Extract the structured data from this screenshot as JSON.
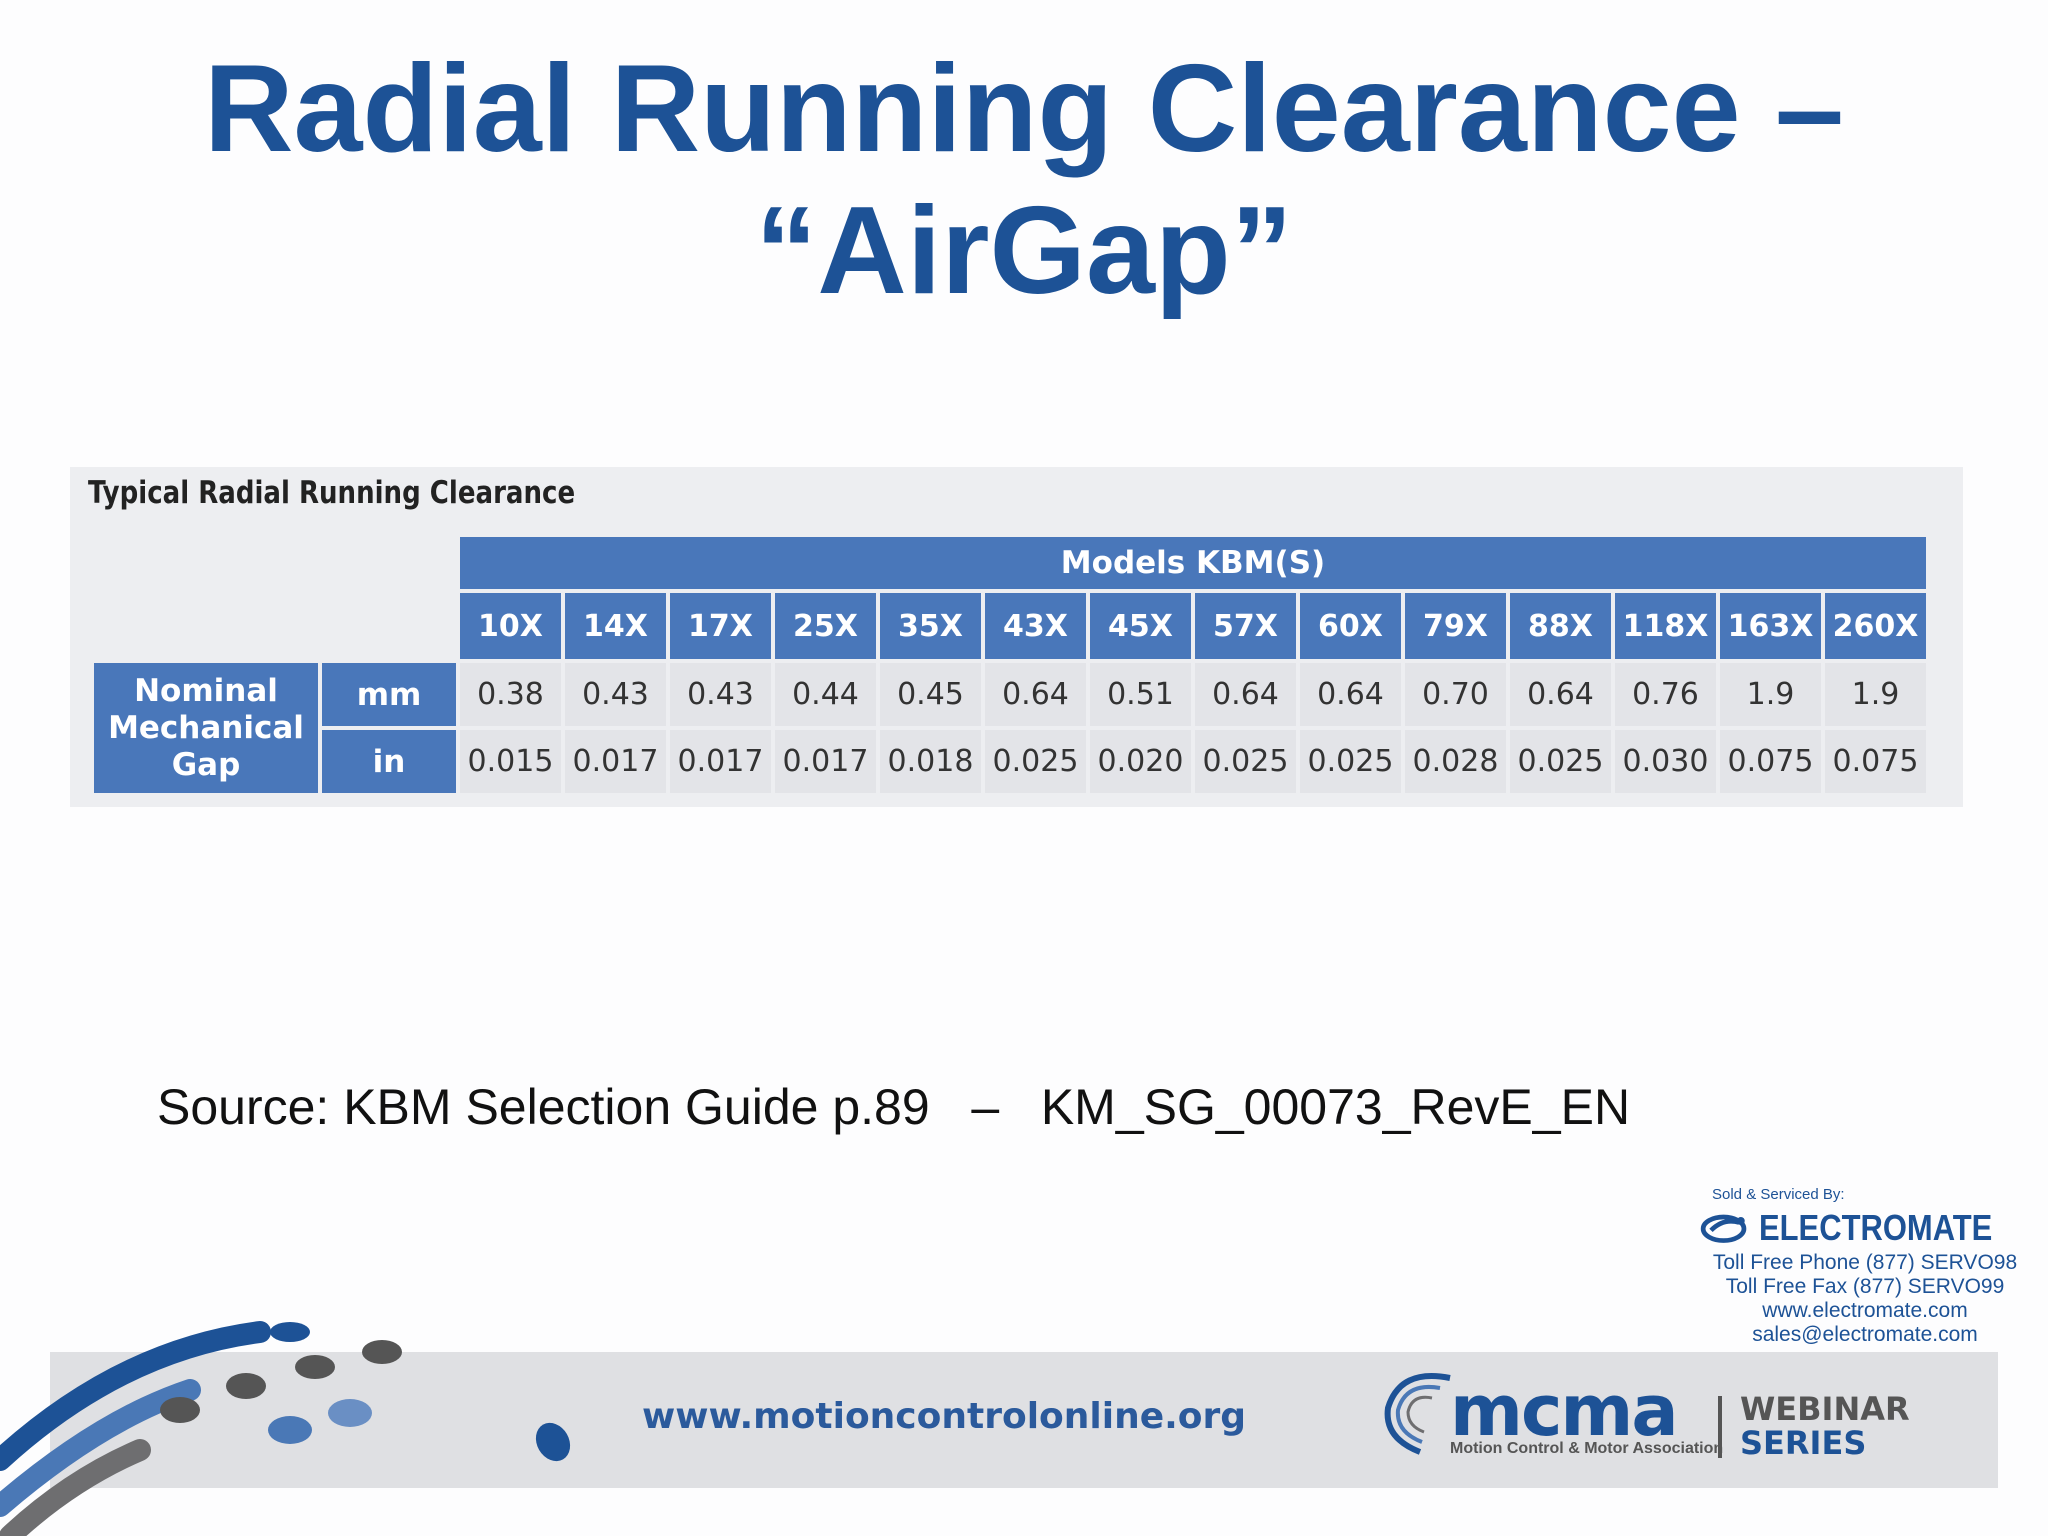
{
  "slide": {
    "title_line1": "Radial Running Clearance –",
    "title_line2": "“AirGap”",
    "source_text": "Source: KBM Selection Guide p.89   –   KM_SG_00073_RevE_EN"
  },
  "table": {
    "caption": "Typical Radial Running Clearance",
    "band_label": "Models KBM(S)",
    "row_header": [
      "Nominal",
      "Mechanical",
      "Gap"
    ],
    "models": [
      "10X",
      "14X",
      "17X",
      "25X",
      "35X",
      "43X",
      "45X",
      "57X",
      "60X",
      "79X",
      "88X",
      "118X",
      "163X",
      "260X"
    ],
    "rows": [
      {
        "unit": "mm",
        "values": [
          "0.38",
          "0.43",
          "0.43",
          "0.44",
          "0.45",
          "0.64",
          "0.51",
          "0.64",
          "0.64",
          "0.70",
          "0.64",
          "0.76",
          "1.9",
          "1.9"
        ]
      },
      {
        "unit": "in",
        "values": [
          "0.015",
          "0.017",
          "0.017",
          "0.017",
          "0.018",
          "0.025",
          "0.020",
          "0.025",
          "0.025",
          "0.028",
          "0.025",
          "0.030",
          "0.075",
          "0.075"
        ]
      }
    ],
    "colors": {
      "header_bg": "#4977ba",
      "cell_bg": "#e3e4e8",
      "panel_bg": "#edeef1"
    }
  },
  "distributor": {
    "sold_by": "Sold & Serviced By:",
    "name": "ELECTROMATE",
    "phone": "Toll Free Phone  (877) SERVO98",
    "fax": "Toll Free Fax  (877) SERVO99",
    "website": "www.electromate.com",
    "email": "sales@electromate.com",
    "logo_icon": "electromate-swirl-icon"
  },
  "footer": {
    "url": "www.motioncontrolonline.org",
    "mcma_name": "mcma",
    "mcma_full": "Motion Control & Motor Association",
    "webinar_line1": "WEBINAR",
    "webinar_line2": "SERIES",
    "colors": {
      "brand_blue": "#1d5296",
      "band_gray": "#dfe0e3"
    }
  }
}
